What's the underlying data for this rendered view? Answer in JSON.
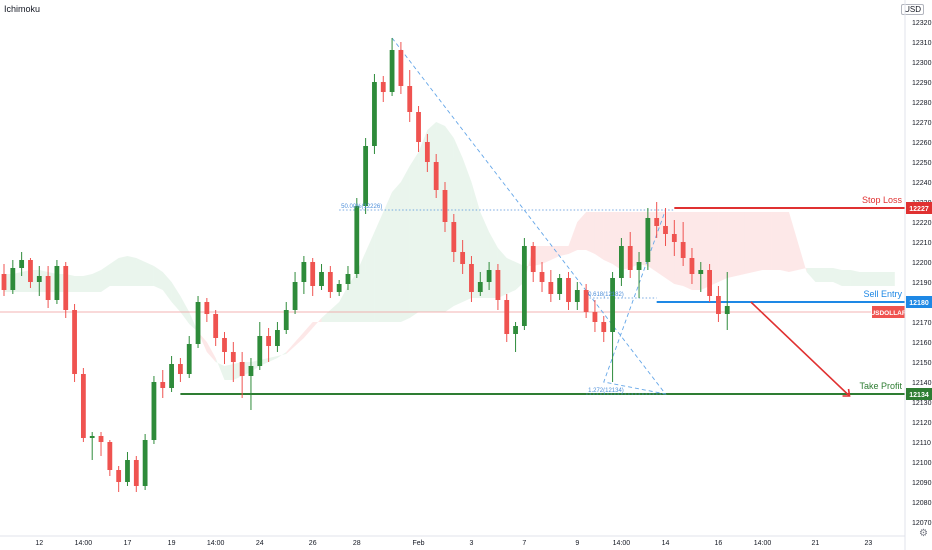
{
  "chart_data": {
    "type": "candlestick",
    "indicator_label": "Ichimoku",
    "currency": "USD",
    "ylim": [
      12064,
      12324
    ],
    "y_ticks": [
      12070,
      12080,
      12090,
      12100,
      12110,
      12120,
      12130,
      12140,
      12150,
      12160,
      12170,
      12180,
      12190,
      12200,
      12210,
      12220,
      12230,
      12240,
      12250,
      12260,
      12270,
      12280,
      12290,
      12300,
      12310,
      12320
    ],
    "x_ticks": [
      {
        "label": "12",
        "i": 4
      },
      {
        "label": "14:00",
        "i": 9
      },
      {
        "label": "17",
        "i": 14
      },
      {
        "label": "19",
        "i": 19
      },
      {
        "label": "14:00",
        "i": 24
      },
      {
        "label": "24",
        "i": 29
      },
      {
        "label": "26",
        "i": 35
      },
      {
        "label": "28",
        "i": 40
      },
      {
        "label": "Feb",
        "i": 47
      },
      {
        "label": "3",
        "i": 53
      },
      {
        "label": "7",
        "i": 59
      },
      {
        "label": "9",
        "i": 65
      },
      {
        "label": "14:00",
        "i": 70
      },
      {
        "label": "14",
        "i": 75
      },
      {
        "label": "16",
        "i": 81
      },
      {
        "label": "14:00",
        "i": 86
      },
      {
        "label": "21",
        "i": 92
      },
      {
        "label": "23",
        "i": 98
      }
    ],
    "candles": [
      [
        12194,
        12199,
        12183,
        12186
      ],
      [
        12186,
        12201,
        12184,
        12197
      ],
      [
        12197,
        12205,
        12193,
        12201
      ],
      [
        12201,
        12202,
        12187,
        12190
      ],
      [
        12190,
        12198,
        12183,
        12193
      ],
      [
        12193,
        12198,
        12177,
        12181
      ],
      [
        12181,
        12201,
        12179,
        12198
      ],
      [
        12198,
        12200,
        12172,
        12176
      ],
      [
        12176,
        12179,
        12140,
        12144
      ],
      [
        12144,
        12147,
        12110,
        12112
      ],
      [
        12112,
        12115,
        12101,
        12113
      ],
      [
        12113,
        12115,
        12103,
        12110
      ],
      [
        12110,
        12111,
        12093,
        12096
      ],
      [
        12096,
        12098,
        12085,
        12090
      ],
      [
        12090,
        12105,
        12088,
        12101
      ],
      [
        12101,
        12103,
        12085,
        12088
      ],
      [
        12088,
        12114,
        12086,
        12111
      ],
      [
        12111,
        12143,
        12109,
        12140
      ],
      [
        12140,
        12146,
        12132,
        12137
      ],
      [
        12137,
        12153,
        12135,
        12149
      ],
      [
        12149,
        12152,
        12140,
        12144
      ],
      [
        12144,
        12163,
        12142,
        12159
      ],
      [
        12159,
        12183,
        12157,
        12180
      ],
      [
        12180,
        12182,
        12170,
        12174
      ],
      [
        12174,
        12176,
        12158,
        12162
      ],
      [
        12162,
        12165,
        12149,
        12155
      ],
      [
        12155,
        12160,
        12140,
        12150
      ],
      [
        12150,
        12155,
        12132,
        12143
      ],
      [
        12143,
        12152,
        12126,
        12148
      ],
      [
        12148,
        12170,
        12146,
        12163
      ],
      [
        12163,
        12167,
        12150,
        12158
      ],
      [
        12158,
        12170,
        12155,
        12166
      ],
      [
        12166,
        12180,
        12164,
        12176
      ],
      [
        12176,
        12195,
        12174,
        12190
      ],
      [
        12190,
        12203,
        12184,
        12200
      ],
      [
        12200,
        12202,
        12183,
        12188
      ],
      [
        12188,
        12199,
        12186,
        12195
      ],
      [
        12195,
        12198,
        12182,
        12185
      ],
      [
        12185,
        12191,
        12183,
        12189
      ],
      [
        12189,
        12198,
        12186,
        12194
      ],
      [
        12194,
        12232,
        12192,
        12228
      ],
      [
        12228,
        12262,
        12224,
        12258
      ],
      [
        12258,
        12294,
        12254,
        12290
      ],
      [
        12290,
        12293,
        12280,
        12285
      ],
      [
        12285,
        12312,
        12283,
        12306
      ],
      [
        12306,
        12310,
        12284,
        12288
      ],
      [
        12288,
        12296,
        12270,
        12275
      ],
      [
        12275,
        12278,
        12255,
        12260
      ],
      [
        12260,
        12264,
        12245,
        12250
      ],
      [
        12250,
        12254,
        12232,
        12236
      ],
      [
        12236,
        12240,
        12215,
        12220
      ],
      [
        12220,
        12224,
        12200,
        12205
      ],
      [
        12205,
        12211,
        12194,
        12199
      ],
      [
        12199,
        12203,
        12180,
        12185
      ],
      [
        12185,
        12195,
        12183,
        12190
      ],
      [
        12190,
        12200,
        12186,
        12196
      ],
      [
        12196,
        12199,
        12176,
        12181
      ],
      [
        12181,
        12184,
        12160,
        12164
      ],
      [
        12164,
        12170,
        12155,
        12168
      ],
      [
        12168,
        12212,
        12166,
        12208
      ],
      [
        12208,
        12210,
        12190,
        12195
      ],
      [
        12195,
        12200,
        12185,
        12190
      ],
      [
        12190,
        12196,
        12180,
        12184
      ],
      [
        12184,
        12194,
        12181,
        12192
      ],
      [
        12192,
        12195,
        12176,
        12180
      ],
      [
        12180,
        12190,
        12176,
        12186
      ],
      [
        12186,
        12189,
        12172,
        12175
      ],
      [
        12175,
        12181,
        12165,
        12170
      ],
      [
        12170,
        12173,
        12160,
        12165
      ],
      [
        12165,
        12195,
        12140,
        12192
      ],
      [
        12192,
        12212,
        12188,
        12208
      ],
      [
        12208,
        12215,
        12192,
        12196
      ],
      [
        12196,
        12205,
        12182,
        12200
      ],
      [
        12200,
        12227,
        12196,
        12222
      ],
      [
        12222,
        12230,
        12212,
        12218
      ],
      [
        12218,
        12227,
        12208,
        12214
      ],
      [
        12214,
        12221,
        12203,
        12210
      ],
      [
        12210,
        12220,
        12198,
        12202
      ],
      [
        12202,
        12207,
        12189,
        12194
      ],
      [
        12194,
        12200,
        12185,
        12196
      ],
      [
        12196,
        12199,
        12180,
        12183
      ],
      [
        12183,
        12188,
        12170,
        12174
      ],
      [
        12174,
        12195,
        12166,
        12178
      ]
    ],
    "ichimoku_cloud": {
      "span_a": [
        12194,
        12194,
        12195,
        12196,
        12196,
        12195,
        12194,
        12194,
        12193,
        12193,
        12194,
        12196,
        12199,
        12202,
        12203,
        12202,
        12200,
        12198,
        12195,
        12190,
        12183,
        12175,
        12165,
        12155,
        12150,
        12148,
        12149,
        12150,
        12150,
        12151,
        12152,
        12153,
        12154,
        12158,
        12162,
        12167,
        12172,
        12176,
        12180,
        12188,
        12195,
        12205,
        12215,
        12225,
        12235,
        12240,
        12248,
        12255,
        12266,
        12270,
        12268,
        12262,
        12252,
        12240,
        12225,
        12215,
        12207,
        12202,
        12200,
        12198,
        12198,
        12199,
        12201,
        12203,
        12204,
        12206,
        12206,
        12204,
        12201,
        12199,
        12196,
        12197,
        12199,
        12198,
        12195,
        12192,
        12189,
        12188,
        12186,
        12186,
        12188,
        12190,
        12192,
        12193,
        12194,
        12195,
        12196,
        12196,
        12196,
        12195,
        12196,
        12197,
        12197,
        12197,
        12197,
        12196,
        12196,
        12195,
        12195,
        12195,
        12195,
        12195
      ],
      "span_b": [
        12185,
        12185,
        12185,
        12185,
        12185,
        12185,
        12185,
        12185,
        12185,
        12185,
        12185,
        12185,
        12188,
        12188,
        12188,
        12188,
        12188,
        12188,
        12186,
        12180,
        12175,
        12169,
        12165,
        12160,
        12152,
        12141,
        12141,
        12143,
        12145,
        12148,
        12150,
        12152,
        12155,
        12160,
        12165,
        12170,
        12170,
        12170,
        12170,
        12170,
        12170,
        12170,
        12170,
        12170,
        12170,
        12170,
        12172,
        12175,
        12175,
        12175,
        12175,
        12178,
        12180,
        12182,
        12182,
        12182,
        12182,
        12184,
        12186,
        12190,
        12208,
        12208,
        12208,
        12208,
        12208,
        12220,
        12225,
        12225,
        12225,
        12225,
        12225,
        12225,
        12225,
        12225,
        12225,
        12225,
        12225,
        12225,
        12225,
        12225,
        12225,
        12225,
        12225,
        12225,
        12225,
        12225,
        12225,
        12225,
        12225,
        12225,
        12210,
        12195,
        12190,
        12190,
        12190,
        12188,
        12188,
        12188,
        12188,
        12188,
        12188,
        12188
      ]
    },
    "price_lines": [
      {
        "label": "Stop Loss",
        "axis_label": "12227",
        "value": 12227,
        "color": "#e03131",
        "from_i": 76
      },
      {
        "label": "Sell Entry",
        "axis_label": "12180",
        "value": 12180,
        "color": "#1e88e5",
        "from_i": 74
      },
      {
        "label": "Take Profit",
        "axis_label": "12134",
        "value": 12134,
        "color": "#2e7d32",
        "from_i": 20
      }
    ],
    "symbol_badge": {
      "label": "USDOLLAR",
      "value": 12175,
      "color": "#ef5350"
    },
    "fib_annotations": [
      {
        "text": "50.00%(12226)",
        "value": 12226,
        "from_i": 38,
        "to_i": 76
      },
      {
        "text": "0.618(12182)",
        "value": 12182,
        "from_i": 66,
        "to_i": 74
      },
      {
        "text": "1.272(12134)",
        "value": 12134,
        "from_i": 66,
        "to_i": 75
      }
    ],
    "grid": false,
    "legend": "none"
  }
}
